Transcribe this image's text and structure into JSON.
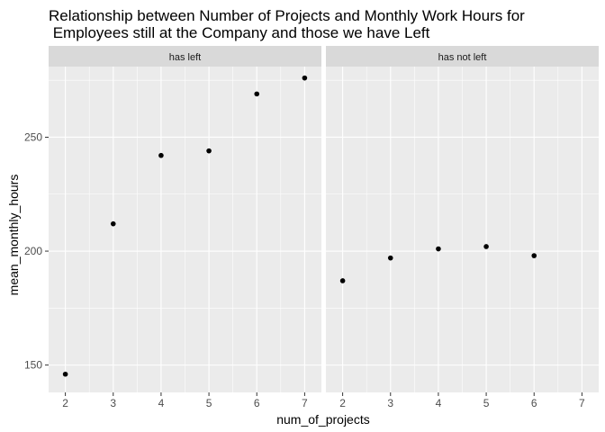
{
  "chart_data": {
    "type": "scatter",
    "title_lines": [
      "Relationship between Number of Projects and Monthly Work Hours for",
      " Employees still at the Company and those we have Left"
    ],
    "xlabel": "num_of_projects",
    "ylabel": "mean_monthly_hours",
    "xlim": [
      1.65,
      7.35
    ],
    "ylim": [
      138,
      281
    ],
    "x_ticks": [
      2,
      3,
      4,
      5,
      6,
      7
    ],
    "y_ticks": [
      150,
      200,
      250
    ],
    "grid": true,
    "facets": [
      {
        "label": "has left",
        "points": [
          {
            "x": 2,
            "y": 146
          },
          {
            "x": 3,
            "y": 212
          },
          {
            "x": 4,
            "y": 242
          },
          {
            "x": 5,
            "y": 244
          },
          {
            "x": 6,
            "y": 269
          },
          {
            "x": 7,
            "y": 276
          }
        ]
      },
      {
        "label": "has not left",
        "points": [
          {
            "x": 2,
            "y": 187
          },
          {
            "x": 3,
            "y": 197
          },
          {
            "x": 4,
            "y": 201
          },
          {
            "x": 5,
            "y": 202
          },
          {
            "x": 6,
            "y": 198
          }
        ]
      }
    ],
    "colors": {
      "panel_background": "#ebebeb",
      "strip_background": "#d9d9d9",
      "grid": "#ffffff",
      "point": "#000000"
    }
  }
}
